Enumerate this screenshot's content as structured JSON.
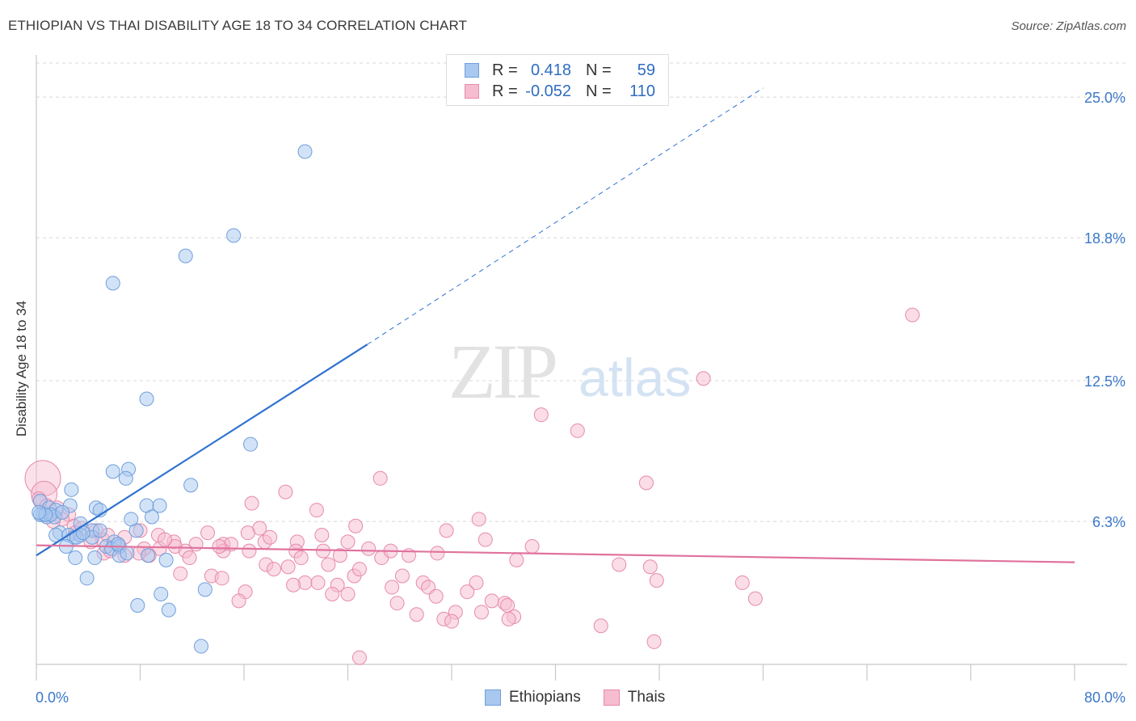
{
  "title": "ETHIOPIAN VS THAI DISABILITY AGE 18 TO 34 CORRELATION CHART",
  "source": "Source: ZipAtlas.com",
  "watermark": {
    "zip": "ZIP",
    "atlas": "atlas"
  },
  "legend": {
    "rows": [
      {
        "r_label": "R =",
        "r_value": "0.418",
        "n_label": "N =",
        "n_value": "59",
        "color": "#a8c8f0",
        "border": "#6f9fdc"
      },
      {
        "r_label": "R =",
        "r_value": "-0.052",
        "n_label": "N =",
        "n_value": "110",
        "color": "#f6bcd0",
        "border": "#e88aaa"
      }
    ]
  },
  "bottom_legend": [
    {
      "label": "Ethiopians",
      "color": "#a8c8f0",
      "border": "#6f9fdc"
    },
    {
      "label": "Thais",
      "color": "#f6bcd0",
      "border": "#e88aaa"
    }
  ],
  "chart_data": {
    "type": "scatter",
    "title": "ETHIOPIAN VS THAI DISABILITY AGE 18 TO 34 CORRELATION CHART",
    "xlabel": "",
    "ylabel": "Disability Age 18 to 34",
    "xlim": [
      0,
      80
    ],
    "ylim": [
      0,
      26.5
    ],
    "x_tick_labels": [
      "0.0%",
      "80.0%"
    ],
    "y_ticks": [
      6.3,
      12.5,
      18.8,
      25.0
    ],
    "y_tick_labels": [
      "6.3%",
      "12.5%",
      "18.8%",
      "25.0%"
    ],
    "grid": true,
    "series": [
      {
        "name": "Ethiopians",
        "color": "#a8c8f0",
        "stroke": "#6f9fdc",
        "trend": {
          "x0": 0,
          "y0": 4.8,
          "x1": 25.5,
          "y1": 14.1,
          "dash_to_x": 56,
          "dash_to_y": 25.4,
          "color": "#2f72d0"
        },
        "points": [
          [
            20.7,
            22.6
          ],
          [
            15.2,
            18.9
          ],
          [
            11.5,
            18.0
          ],
          [
            5.9,
            16.8
          ],
          [
            8.5,
            11.7
          ],
          [
            16.5,
            9.7
          ],
          [
            5.9,
            8.5
          ],
          [
            7.1,
            8.6
          ],
          [
            6.9,
            8.2
          ],
          [
            11.9,
            7.9
          ],
          [
            2.7,
            7.7
          ],
          [
            0.3,
            7.2
          ],
          [
            1.0,
            6.9
          ],
          [
            1.5,
            6.8
          ],
          [
            2.6,
            7.0
          ],
          [
            4.6,
            6.9
          ],
          [
            4.9,
            6.8
          ],
          [
            8.5,
            7.0
          ],
          [
            9.5,
            7.0
          ],
          [
            0.5,
            6.6
          ],
          [
            0.8,
            6.5
          ],
          [
            0.3,
            6.6
          ],
          [
            1.4,
            6.5
          ],
          [
            1.8,
            5.8
          ],
          [
            1.5,
            5.7
          ],
          [
            3.4,
            6.2
          ],
          [
            4.3,
            5.9
          ],
          [
            2.5,
            5.7
          ],
          [
            2.9,
            5.6
          ],
          [
            3.4,
            5.7
          ],
          [
            4.3,
            5.6
          ],
          [
            4.9,
            5.9
          ],
          [
            5.4,
            5.2
          ],
          [
            6.0,
            5.4
          ],
          [
            7.7,
            5.9
          ],
          [
            7.3,
            6.4
          ],
          [
            8.9,
            6.5
          ],
          [
            1.1,
            6.6
          ],
          [
            0.7,
            6.6
          ],
          [
            3.1,
            5.6
          ],
          [
            3.6,
            5.8
          ],
          [
            2.3,
            5.2
          ],
          [
            5.8,
            5.1
          ],
          [
            6.4,
            5.2
          ],
          [
            3.0,
            4.7
          ],
          [
            4.5,
            4.7
          ],
          [
            6.4,
            4.8
          ],
          [
            8.6,
            4.8
          ],
          [
            10.0,
            4.6
          ],
          [
            3.9,
            3.8
          ],
          [
            9.6,
            3.1
          ],
          [
            13.0,
            3.3
          ],
          [
            7.8,
            2.6
          ],
          [
            10.2,
            2.4
          ],
          [
            12.7,
            0.8
          ],
          [
            0.2,
            6.7
          ],
          [
            2.0,
            6.7
          ],
          [
            6.3,
            5.3
          ],
          [
            7.0,
            4.9
          ]
        ]
      },
      {
        "name": "Thais",
        "color": "#f6bcd0",
        "stroke": "#e88aaa",
        "trend": {
          "x0": 0,
          "y0": 5.25,
          "x1": 80,
          "y1": 4.5,
          "color": "#e0729c"
        },
        "points": [
          [
            67.5,
            15.4
          ],
          [
            51.4,
            12.6
          ],
          [
            38.9,
            11.0
          ],
          [
            41.7,
            10.3
          ],
          [
            26.5,
            8.2
          ],
          [
            47.0,
            8.0
          ],
          [
            19.2,
            7.6
          ],
          [
            16.6,
            7.1
          ],
          [
            21.6,
            6.8
          ],
          [
            0.2,
            7.3
          ],
          [
            0.8,
            7.0
          ],
          [
            1.6,
            6.9
          ],
          [
            2.5,
            6.6
          ],
          [
            2.0,
            6.4
          ],
          [
            2.9,
            6.1
          ],
          [
            3.5,
            6.0
          ],
          [
            4.6,
            5.9
          ],
          [
            24.6,
            6.1
          ],
          [
            17.2,
            6.0
          ],
          [
            31.6,
            5.9
          ],
          [
            34.1,
            6.4
          ],
          [
            16.3,
            5.8
          ],
          [
            13.2,
            5.8
          ],
          [
            22.0,
            5.7
          ],
          [
            9.4,
            5.7
          ],
          [
            8.0,
            5.9
          ],
          [
            5.1,
            5.5
          ],
          [
            6.8,
            5.6
          ],
          [
            10.6,
            5.4
          ],
          [
            12.3,
            5.3
          ],
          [
            14.4,
            5.3
          ],
          [
            15.0,
            5.3
          ],
          [
            17.6,
            5.4
          ],
          [
            20.1,
            5.4
          ],
          [
            24.0,
            5.4
          ],
          [
            25.6,
            5.1
          ],
          [
            34.6,
            5.5
          ],
          [
            38.2,
            5.2
          ],
          [
            10.7,
            5.2
          ],
          [
            11.5,
            5.0
          ],
          [
            9.5,
            5.1
          ],
          [
            8.7,
            4.8
          ],
          [
            8.3,
            5.1
          ],
          [
            7.9,
            4.9
          ],
          [
            6.8,
            4.8
          ],
          [
            5.2,
            4.9
          ],
          [
            20.0,
            5.0
          ],
          [
            20.4,
            4.7
          ],
          [
            22.1,
            5.0
          ],
          [
            23.4,
            4.8
          ],
          [
            26.6,
            4.7
          ],
          [
            28.7,
            4.8
          ],
          [
            30.9,
            4.9
          ],
          [
            37.0,
            4.6
          ],
          [
            11.8,
            4.7
          ],
          [
            17.7,
            4.4
          ],
          [
            19.4,
            4.3
          ],
          [
            22.5,
            4.4
          ],
          [
            13.5,
            3.9
          ],
          [
            11.1,
            4.0
          ],
          [
            18.3,
            4.2
          ],
          [
            20.7,
            3.6
          ],
          [
            24.5,
            3.9
          ],
          [
            28.2,
            3.9
          ],
          [
            29.8,
            3.6
          ],
          [
            30.2,
            3.4
          ],
          [
            33.9,
            3.6
          ],
          [
            44.9,
            4.4
          ],
          [
            47.3,
            4.3
          ],
          [
            47.8,
            3.7
          ],
          [
            54.4,
            3.6
          ],
          [
            19.8,
            3.5
          ],
          [
            23.2,
            3.5
          ],
          [
            22.8,
            3.1
          ],
          [
            27.4,
            3.4
          ],
          [
            30.8,
            3.0
          ],
          [
            33.2,
            3.2
          ],
          [
            35.1,
            2.8
          ],
          [
            36.1,
            2.7
          ],
          [
            36.3,
            2.6
          ],
          [
            27.8,
            2.7
          ],
          [
            16.1,
            3.2
          ],
          [
            15.6,
            2.8
          ],
          [
            24.0,
            3.1
          ],
          [
            29.3,
            2.2
          ],
          [
            31.4,
            2.0
          ],
          [
            32.3,
            2.3
          ],
          [
            34.3,
            2.3
          ],
          [
            36.8,
            2.1
          ],
          [
            36.4,
            2.0
          ],
          [
            32.0,
            1.9
          ],
          [
            43.5,
            1.7
          ],
          [
            55.4,
            2.9
          ],
          [
            47.6,
            1.0
          ],
          [
            24.9,
            0.3
          ],
          [
            14.3,
            3.8
          ],
          [
            9.9,
            5.5
          ],
          [
            4.2,
            5.4
          ],
          [
            5.7,
            5.0
          ],
          [
            14.4,
            5.0
          ],
          [
            16.4,
            5.0
          ],
          [
            27.3,
            5.0
          ],
          [
            24.9,
            4.2
          ],
          [
            21.7,
            3.6
          ],
          [
            18.0,
            5.6
          ],
          [
            14.1,
            5.2
          ],
          [
            3.0,
            5.8
          ],
          [
            5.5,
            5.7
          ],
          [
            6.3,
            5.3
          ],
          [
            1.3,
            6.3
          ]
        ],
        "big_points": [
          [
            0.5,
            8.2
          ],
          [
            0.6,
            7.5
          ]
        ]
      }
    ]
  }
}
